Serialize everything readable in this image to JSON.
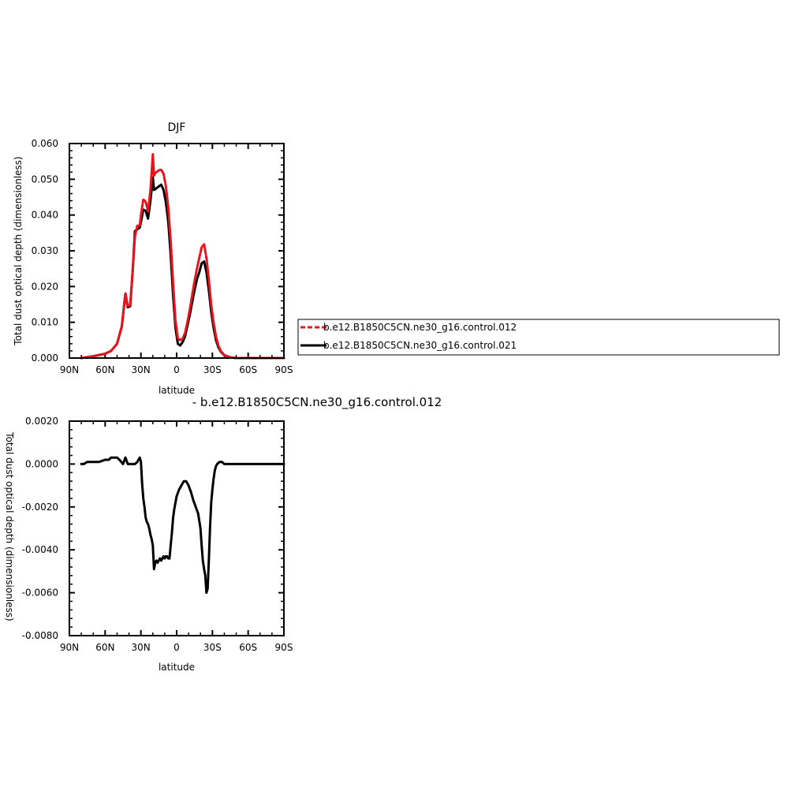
{
  "chart_data": [
    {
      "type": "line",
      "title": "DJF",
      "xlabel": "latitude",
      "ylabel": "Total dust optical depth (dimensionless)",
      "xlim": [
        90,
        -90
      ],
      "ylim": [
        0,
        0.06
      ],
      "x_ticks": [
        90,
        60,
        30,
        0,
        -30,
        -60,
        -90
      ],
      "x_tick_labels": [
        "90N",
        "60N",
        "30N",
        "0",
        "30S",
        "60S",
        "90S"
      ],
      "y_ticks": [
        0,
        0.01,
        0.02,
        0.03,
        0.04,
        0.05,
        0.06
      ],
      "y_tick_labels": [
        "0.000",
        "0.010",
        "0.020",
        "0.030",
        "0.040",
        "0.050",
        "0.060"
      ],
      "grid": false,
      "legend_position": "right",
      "series": [
        {
          "name": "b.e12.B1850C5CN.ne30_g16.control.012",
          "color": "#e8141d",
          "style": "dashed",
          "x": [
            80,
            70,
            60,
            55,
            50,
            46,
            43,
            41,
            39,
            37,
            35,
            33,
            31,
            30,
            28,
            26,
            24,
            22,
            20,
            19,
            18,
            17,
            15,
            13,
            11,
            9,
            7,
            5,
            3,
            1,
            -1,
            -3,
            -5,
            -7,
            -9,
            -11,
            -13,
            -15,
            -17,
            -19,
            -21,
            -23,
            -25,
            -27,
            -29,
            -31,
            -33,
            -35,
            -37,
            -40,
            -45,
            -50,
            -60,
            -70,
            -80,
            -90
          ],
          "y": [
            0.0,
            0.0005,
            0.0012,
            0.002,
            0.004,
            0.009,
            0.0182,
            0.0145,
            0.0148,
            0.024,
            0.034,
            0.037,
            0.037,
            0.04,
            0.0443,
            0.0438,
            0.041,
            0.047,
            0.057,
            0.051,
            0.0518,
            0.052,
            0.0525,
            0.0527,
            0.0515,
            0.048,
            0.042,
            0.033,
            0.021,
            0.0105,
            0.0055,
            0.005,
            0.0055,
            0.007,
            0.01,
            0.0135,
            0.0175,
            0.0215,
            0.025,
            0.028,
            0.031,
            0.0318,
            0.028,
            0.022,
            0.015,
            0.01,
            0.006,
            0.0035,
            0.002,
            0.0008,
            0.0002,
            0.0,
            0.0,
            0.0,
            0.0,
            0.0
          ]
        },
        {
          "name": "b.e12.B1850C5CN.ne30_g16.control.021",
          "color": "#000000",
          "style": "solid",
          "x": [
            80,
            70,
            60,
            55,
            50,
            46,
            43,
            41,
            39,
            37,
            35,
            33,
            31,
            30,
            28,
            26,
            24,
            22,
            20,
            19,
            18,
            17,
            15,
            13,
            11,
            9,
            7,
            5,
            3,
            1,
            -1,
            -3,
            -5,
            -7,
            -9,
            -11,
            -13,
            -15,
            -17,
            -19,
            -21,
            -23,
            -25,
            -27,
            -29,
            -31,
            -33,
            -35,
            -37,
            -40,
            -45,
            -50,
            -60,
            -70,
            -80,
            -90
          ],
          "y": [
            0.0,
            0.0005,
            0.0012,
            0.002,
            0.004,
            0.0088,
            0.018,
            0.0142,
            0.0145,
            0.0238,
            0.0355,
            0.036,
            0.0365,
            0.038,
            0.0415,
            0.0412,
            0.039,
            0.044,
            0.0505,
            0.047,
            0.0472,
            0.0475,
            0.048,
            0.0485,
            0.047,
            0.0435,
            0.038,
            0.029,
            0.0175,
            0.0085,
            0.004,
            0.0035,
            0.0045,
            0.006,
            0.009,
            0.012,
            0.0155,
            0.019,
            0.022,
            0.024,
            0.0265,
            0.027,
            0.024,
            0.019,
            0.013,
            0.0085,
            0.005,
            0.003,
            0.0018,
            0.0008,
            0.0002,
            0.0,
            0.0,
            0.0,
            0.0,
            0.0
          ]
        }
      ]
    },
    {
      "type": "line",
      "title": "- b.e12.B1850C5CN.ne30_g16.control.012",
      "xlabel": "latitude",
      "ylabel": "Total dust optical depth (dimensionless)",
      "xlim": [
        90,
        -90
      ],
      "ylim": [
        -0.008,
        0.002
      ],
      "x_ticks": [
        90,
        60,
        30,
        0,
        -30,
        -60,
        -90
      ],
      "x_tick_labels": [
        "90N",
        "60N",
        "30N",
        "0",
        "30S",
        "60S",
        "90S"
      ],
      "y_ticks": [
        0.002,
        0.0,
        -0.002,
        -0.004,
        -0.006,
        -0.008
      ],
      "y_tick_labels": [
        "0.0020",
        "0.0000",
        "-0.0020",
        "-0.0040",
        "-0.0060",
        "-0.0080"
      ],
      "grid": false,
      "series": [
        {
          "color": "#000000",
          "style": "solid",
          "x": [
            80,
            78,
            75,
            70,
            65,
            60,
            57,
            55,
            52,
            50,
            48,
            45,
            43,
            41,
            39,
            37,
            35,
            33,
            32,
            31,
            30,
            29,
            28,
            27,
            26,
            25,
            24,
            23,
            22,
            21,
            20,
            19,
            18,
            17,
            16,
            15,
            14,
            13,
            12,
            11,
            10,
            9,
            8,
            7,
            6,
            5,
            4,
            3,
            2,
            1,
            0,
            -2,
            -4,
            -6,
            -8,
            -10,
            -12,
            -14,
            -16,
            -18,
            -20,
            -21,
            -22,
            -23,
            -24,
            -25,
            -26,
            -27,
            -28,
            -29,
            -30,
            -31,
            -32,
            -33,
            -34,
            -36,
            -38,
            -40,
            -43,
            -47,
            -50,
            -55,
            -60,
            -70,
            -80,
            -90
          ],
          "y": [
            0.0,
            0.0,
            0.0001,
            0.0001,
            0.0001,
            0.0002,
            0.0002,
            0.0003,
            0.0003,
            0.0003,
            0.0002,
            0.0,
            0.0003,
            0.0,
            0.0,
            0.0,
            0.0,
            0.0001,
            0.0002,
            0.0003,
            0.0001,
            -0.0009,
            -0.0016,
            -0.002,
            -0.0025,
            -0.0027,
            -0.0028,
            -0.003,
            -0.0033,
            -0.0035,
            -0.0038,
            -0.0049,
            -0.0046,
            -0.0045,
            -0.0046,
            -0.0045,
            -0.0044,
            -0.0045,
            -0.0044,
            -0.0043,
            -0.0044,
            -0.0043,
            -0.0043,
            -0.0044,
            -0.0044,
            -0.0038,
            -0.0032,
            -0.0025,
            -0.0021,
            -0.0018,
            -0.0015,
            -0.0012,
            -0.001,
            -0.0008,
            -0.0008,
            -0.001,
            -0.0013,
            -0.0017,
            -0.002,
            -0.0023,
            -0.003,
            -0.0038,
            -0.0045,
            -0.0049,
            -0.0052,
            -0.006,
            -0.0058,
            -0.0045,
            -0.003,
            -0.0018,
            -0.0012,
            -0.0007,
            -0.0003,
            -0.0001,
            0.0,
            0.0001,
            0.0001,
            0.0,
            0.0,
            0.0,
            0.0,
            0.0,
            0.0,
            0.0,
            0.0,
            0.0
          ]
        }
      ]
    }
  ]
}
